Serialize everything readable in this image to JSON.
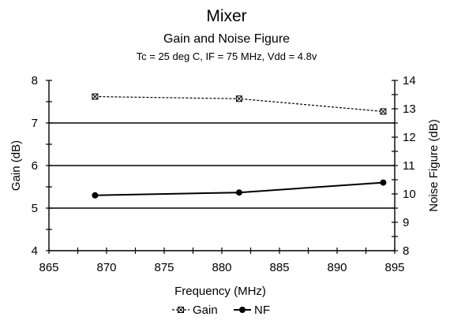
{
  "chart_data": {
    "type": "line",
    "title": "Mixer",
    "subtitle": "Gain and Noise Figure",
    "conditions": "Tc = 25 deg C, IF = 75 MHz, Vdd = 4.8v",
    "xlabel": "Frequency (MHz)",
    "ylabel_left": "Gain (dB)",
    "ylabel_right": "Noise Figure (dB)",
    "xlim": [
      865,
      895
    ],
    "ylim_left": [
      4,
      8
    ],
    "ylim_right": [
      8,
      14
    ],
    "x_ticks": [
      "865",
      "870",
      "875",
      "880",
      "885",
      "890",
      "895"
    ],
    "y_left_ticks": [
      "4",
      "5",
      "6",
      "7",
      "8"
    ],
    "y_right_ticks": [
      "8",
      "9",
      "10",
      "11",
      "12",
      "13",
      "14"
    ],
    "gridlines_left": [
      5,
      6,
      7
    ],
    "legend_position": "bottom-center",
    "series": [
      {
        "name": "Gain",
        "axis": "left",
        "style": "dashed",
        "marker": "x-square",
        "x": [
          869,
          881.5,
          894
        ],
        "values": [
          7.62,
          7.57,
          7.27
        ]
      },
      {
        "name": "NF",
        "axis": "right",
        "style": "solid",
        "marker": "circle",
        "x": [
          869,
          881.5,
          894
        ],
        "values": [
          9.95,
          10.05,
          10.4
        ]
      }
    ]
  }
}
